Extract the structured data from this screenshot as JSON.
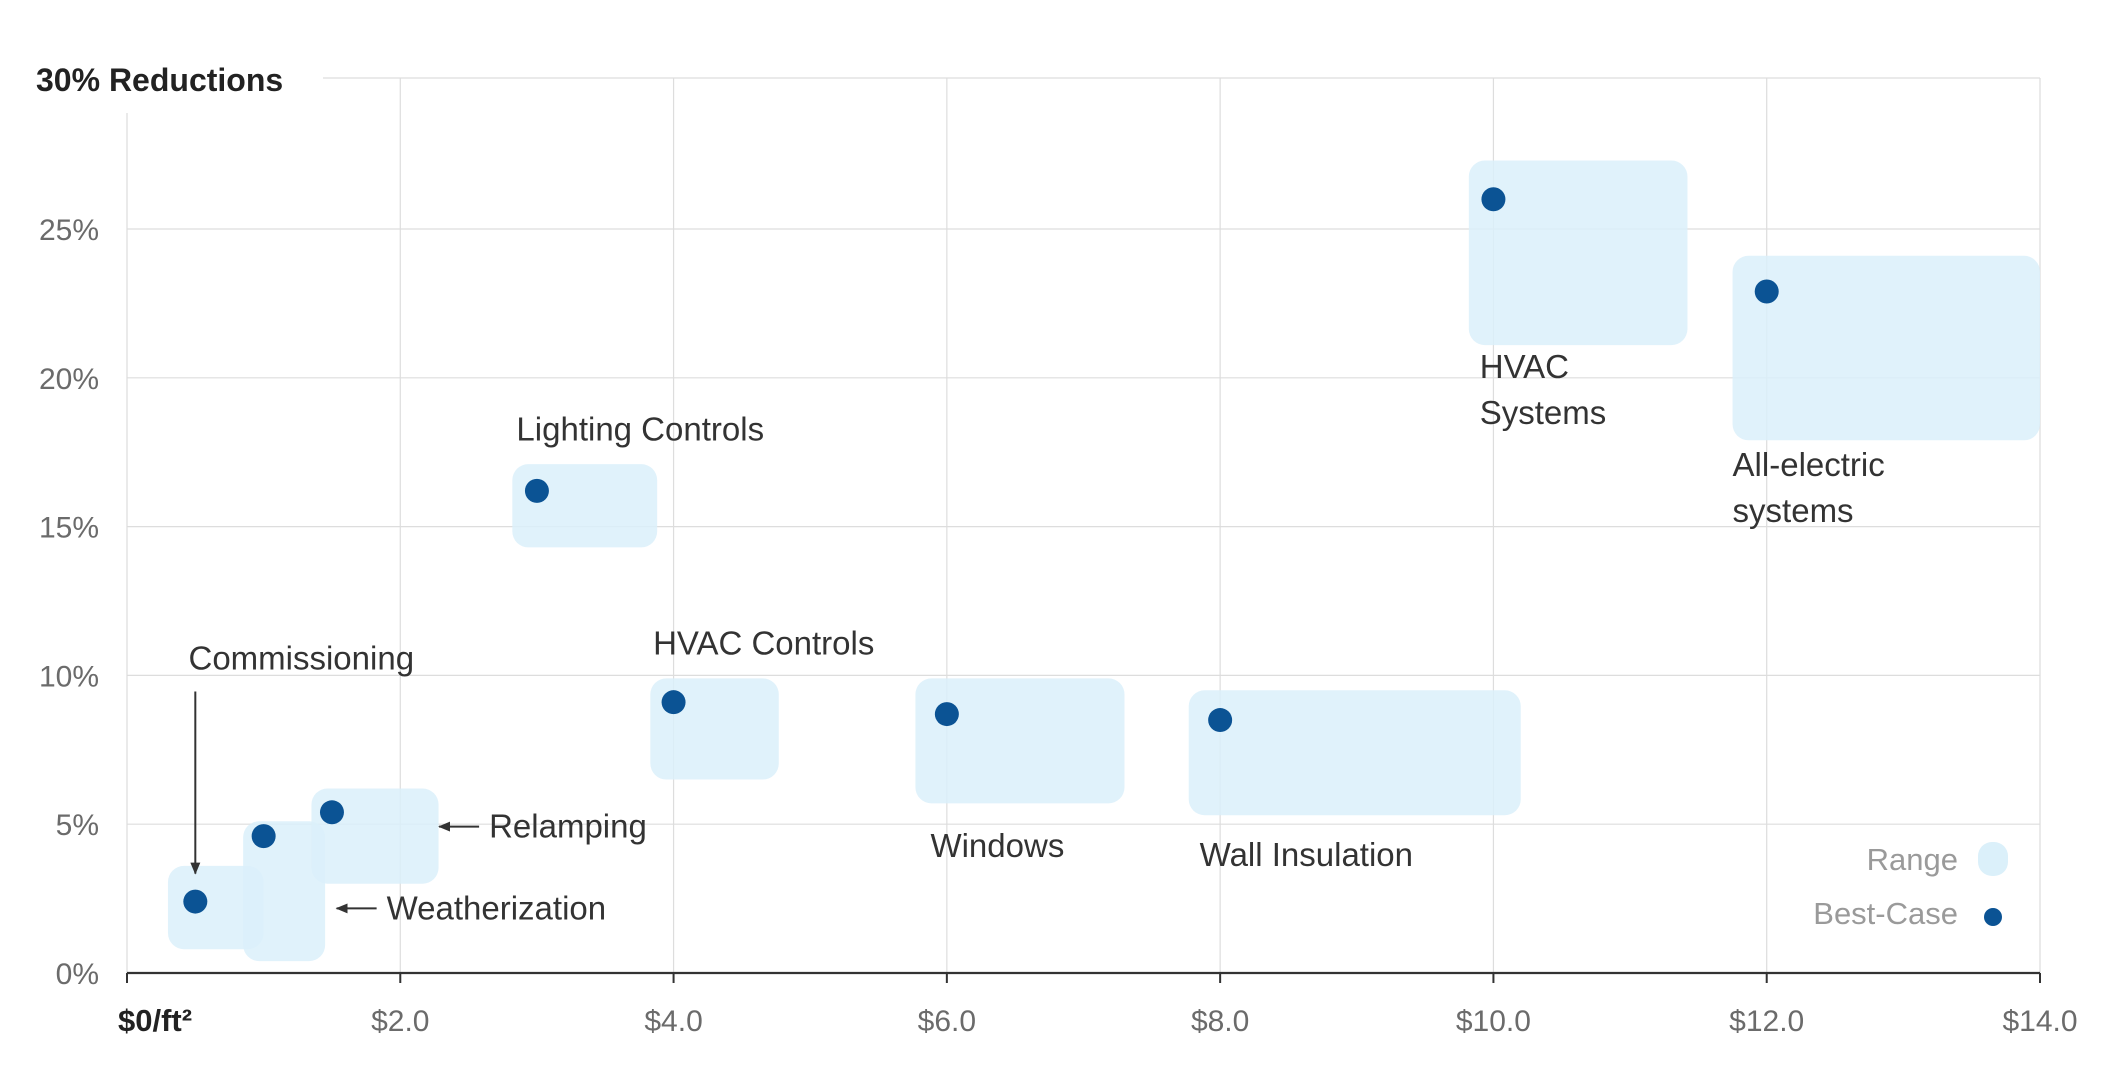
{
  "chart_data": {
    "type": "scatter",
    "title": "",
    "ylabel": "30% Reductions",
    "xlabel_origin": "$0/ft²",
    "xlim": [
      0,
      14
    ],
    "ylim": [
      0,
      30
    ],
    "x_ticks": [
      {
        "value": 2,
        "label": "$2.0"
      },
      {
        "value": 4,
        "label": "$4.0"
      },
      {
        "value": 6,
        "label": "$6.0"
      },
      {
        "value": 8,
        "label": "$8.0"
      },
      {
        "value": 10,
        "label": "$10.0"
      },
      {
        "value": 12,
        "label": "$12.0"
      },
      {
        "value": 14,
        "label": "$14.0"
      }
    ],
    "y_ticks": [
      {
        "value": 0,
        "label": "0%"
      },
      {
        "value": 5,
        "label": "5%"
      },
      {
        "value": 10,
        "label": "10%"
      },
      {
        "value": 15,
        "label": "15%"
      },
      {
        "value": 20,
        "label": "20%"
      },
      {
        "value": 25,
        "label": "25%"
      }
    ],
    "grid": true,
    "colors": {
      "range": "#dbf0fa",
      "best_case": "#0b5394",
      "grid": "#dddddd",
      "axis": "#333333",
      "legend_text": "#9a9a9a",
      "label_text": "#333333"
    },
    "legend": {
      "position": "bottom-right",
      "items": [
        {
          "name": "Range",
          "marker": "range-box"
        },
        {
          "name": "Best-Case",
          "marker": "best-case-dot"
        }
      ]
    },
    "series": [
      {
        "name": "Commissioning",
        "label_lines": [
          "Commissioning"
        ],
        "best_case": {
          "x": 0.5,
          "y": 2.4
        },
        "range": {
          "x": [
            0.3,
            1.0
          ],
          "y": [
            0.8,
            3.6
          ]
        },
        "label_anchor": {
          "x": 0.45,
          "y": 10.2
        },
        "label_align": "start",
        "arrow": "down"
      },
      {
        "name": "Weatherization",
        "label_lines": [
          "Weatherization"
        ],
        "best_case": {
          "x": 1.0,
          "y": 4.6
        },
        "range": {
          "x": [
            0.85,
            1.45
          ],
          "y": [
            0.4,
            5.1
          ]
        },
        "label_anchor": {
          "x": 1.9,
          "y": 1.8
        },
        "label_align": "start",
        "arrow": "left"
      },
      {
        "name": "Relamping",
        "label_lines": [
          "Relamping"
        ],
        "best_case": {
          "x": 1.5,
          "y": 5.4
        },
        "range": {
          "x": [
            1.35,
            2.28
          ],
          "y": [
            3.0,
            6.2
          ]
        },
        "label_anchor": {
          "x": 2.65,
          "y": 4.55
        },
        "label_align": "start",
        "arrow": "left"
      },
      {
        "name": "Lighting Controls",
        "label_lines": [
          "Lighting Controls"
        ],
        "best_case": {
          "x": 3.0,
          "y": 16.2
        },
        "range": {
          "x": [
            2.82,
            3.88
          ],
          "y": [
            14.3,
            17.1
          ]
        },
        "label_anchor": {
          "x": 2.85,
          "y": 17.9
        },
        "label_align": "start",
        "arrow": "none"
      },
      {
        "name": "HVAC Controls",
        "label_lines": [
          "HVAC Controls"
        ],
        "best_case": {
          "x": 4.0,
          "y": 9.1
        },
        "range": {
          "x": [
            3.83,
            4.77
          ],
          "y": [
            6.5,
            9.9
          ]
        },
        "label_anchor": {
          "x": 3.85,
          "y": 10.7
        },
        "label_align": "start",
        "arrow": "none"
      },
      {
        "name": "Windows",
        "label_lines": [
          "Windows"
        ],
        "best_case": {
          "x": 6.0,
          "y": 8.7
        },
        "range": {
          "x": [
            5.77,
            7.3
          ],
          "y": [
            5.7,
            9.9
          ]
        },
        "label_anchor": {
          "x": 5.88,
          "y": 3.9
        },
        "label_align": "start",
        "arrow": "none"
      },
      {
        "name": "Wall Insulation",
        "label_lines": [
          "Wall Insulation"
        ],
        "best_case": {
          "x": 8.0,
          "y": 8.5
        },
        "range": {
          "x": [
            7.77,
            10.2
          ],
          "y": [
            5.3,
            9.5
          ]
        },
        "label_anchor": {
          "x": 7.85,
          "y": 3.6
        },
        "label_align": "start",
        "arrow": "none"
      },
      {
        "name": "HVAC Systems",
        "label_lines": [
          "HVAC",
          "Systems"
        ],
        "best_case": {
          "x": 10.0,
          "y": 26.0
        },
        "range": {
          "x": [
            9.82,
            11.42
          ],
          "y": [
            21.1,
            27.3
          ]
        },
        "label_anchor": {
          "x": 9.9,
          "y": 20.0
        },
        "label_align": "start",
        "arrow": "none"
      },
      {
        "name": "All-electric systems",
        "label_lines": [
          "All-electric",
          "systems"
        ],
        "best_case": {
          "x": 12.0,
          "y": 22.9
        },
        "range": {
          "x": [
            11.75,
            14.0
          ],
          "y": [
            17.9,
            24.1
          ]
        },
        "label_anchor": {
          "x": 11.75,
          "y": 16.7
        },
        "label_align": "start",
        "arrow": "none"
      }
    ]
  }
}
